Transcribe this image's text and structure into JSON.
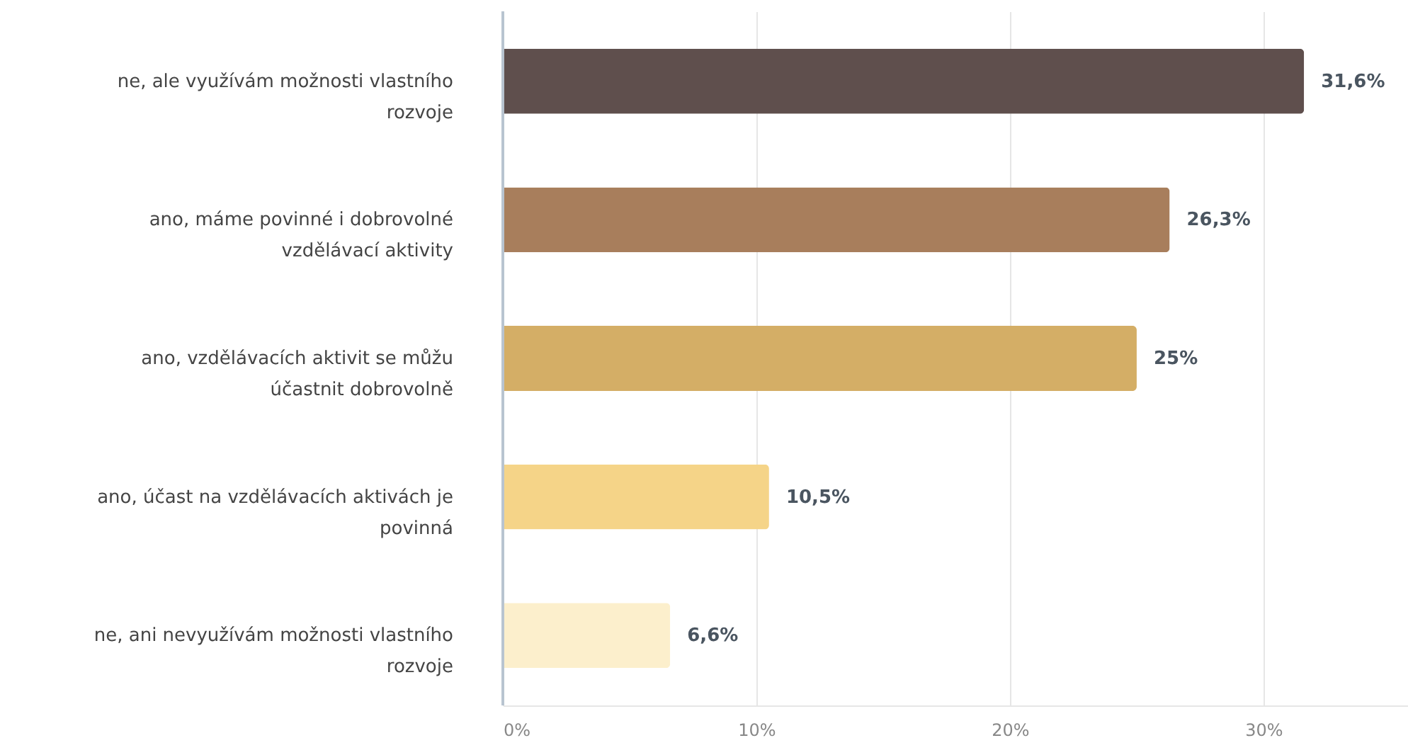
{
  "chart_data": {
    "type": "bar",
    "orientation": "horizontal",
    "categories": [
      "ne, ale využívám možnosti vlastního rozvoje",
      "ano, máme povinné i dobrovolné vzdělávací aktivity",
      "ano, vzdělávacích aktivit se můžu účastnit dobrovolně",
      "ano, účast na vzdělávacích aktivách je povinná",
      "ne, ani nevyužívám možnosti vlastního rozvoje"
    ],
    "values": [
      31.6,
      26.3,
      25,
      10.5,
      6.6
    ],
    "colors": [
      "#5f4f4d",
      "#a87e5c",
      "#d4ae66",
      "#f5d488",
      "#fcefcc"
    ],
    "value_labels": [
      "31,6%",
      "26,3%",
      "25%",
      "10,5%",
      "6,6%"
    ],
    "xlim": [
      0,
      35.7
    ],
    "xticks": [
      {
        "value": 0,
        "label": "0%"
      },
      {
        "value": 10,
        "label": "10%"
      },
      {
        "value": 20,
        "label": "20%"
      },
      {
        "value": 30,
        "label": "30%"
      }
    ],
    "grid": "x"
  }
}
